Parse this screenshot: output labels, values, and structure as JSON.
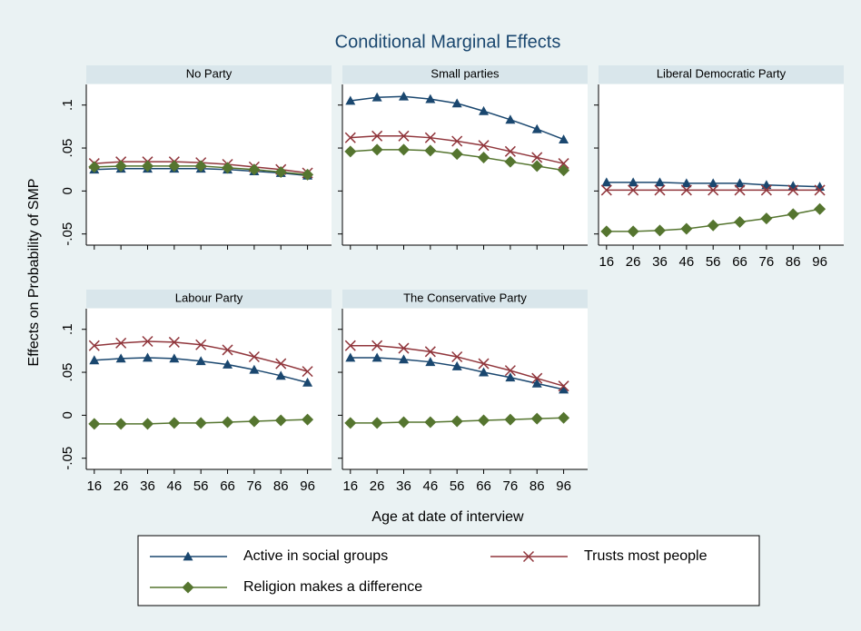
{
  "title": "Conditional Marginal Effects",
  "y_label": "Effects on Probability of SMP",
  "x_label": "Age at date of interview",
  "chart_data": [
    {
      "type": "line",
      "title": "No Party",
      "x": [
        16,
        26,
        36,
        46,
        56,
        66,
        76,
        86,
        96
      ],
      "xlim": [
        13,
        105
      ],
      "xticks": [
        16,
        26,
        36,
        46,
        56,
        66,
        76,
        86,
        96
      ],
      "ylim": [
        -0.063,
        0.124
      ],
      "yticks": [
        {
          "value": -0.05,
          "label": "-.05"
        },
        0,
        {
          "value": 0.05,
          "label": ".05"
        },
        {
          "value": 0.1,
          "label": ".1"
        }
      ],
      "series": [
        {
          "name": "Active in social groups",
          "color": "#1a476f",
          "marker": "triangle",
          "values": [
            0.025,
            0.026,
            0.026,
            0.026,
            0.026,
            0.025,
            0.023,
            0.021,
            0.018
          ]
        },
        {
          "name": "Trusts most people",
          "color": "#90353b",
          "marker": "x",
          "values": [
            0.032,
            0.034,
            0.034,
            0.034,
            0.033,
            0.031,
            0.028,
            0.025,
            0.021
          ]
        },
        {
          "name": "Religion makes a difference",
          "color": "#55752f",
          "marker": "diamond",
          "values": [
            0.028,
            0.029,
            0.029,
            0.029,
            0.029,
            0.027,
            0.025,
            0.022,
            0.019
          ]
        }
      ]
    },
    {
      "type": "line",
      "title": "Small parties",
      "x": [
        16,
        26,
        36,
        46,
        56,
        66,
        76,
        86,
        96
      ],
      "xlim": [
        13,
        105
      ],
      "xticks": [
        16,
        26,
        36,
        46,
        56,
        66,
        76,
        86,
        96
      ],
      "ylim": [
        -0.063,
        0.124
      ],
      "yticks": [
        {
          "value": -0.05,
          "label": "-.05"
        },
        0,
        {
          "value": 0.05,
          "label": ".05"
        },
        {
          "value": 0.1,
          "label": ".1"
        }
      ],
      "series": [
        {
          "name": "Active in social groups",
          "color": "#1a476f",
          "marker": "triangle",
          "values": [
            0.105,
            0.109,
            0.11,
            0.107,
            0.102,
            0.093,
            0.083,
            0.072,
            0.06
          ]
        },
        {
          "name": "Trusts most people",
          "color": "#90353b",
          "marker": "x",
          "values": [
            0.062,
            0.064,
            0.064,
            0.062,
            0.058,
            0.053,
            0.046,
            0.039,
            0.032
          ]
        },
        {
          "name": "Religion makes a difference",
          "color": "#55752f",
          "marker": "diamond",
          "values": [
            0.046,
            0.048,
            0.048,
            0.047,
            0.043,
            0.039,
            0.034,
            0.029,
            0.024
          ]
        }
      ]
    },
    {
      "type": "line",
      "title": "Liberal Democratic Party",
      "x": [
        16,
        26,
        36,
        46,
        56,
        66,
        76,
        86,
        96
      ],
      "xlim": [
        13,
        105
      ],
      "xticks": [
        16,
        26,
        36,
        46,
        56,
        66,
        76,
        86,
        96
      ],
      "ylim": [
        -0.063,
        0.124
      ],
      "yticks": [
        {
          "value": -0.05,
          "label": "-.05"
        },
        0,
        {
          "value": 0.05,
          "label": ".05"
        },
        {
          "value": 0.1,
          "label": ".1"
        }
      ],
      "series": [
        {
          "name": "Active in social groups",
          "color": "#1a476f",
          "marker": "triangle",
          "values": [
            0.01,
            0.01,
            0.01,
            0.009,
            0.009,
            0.009,
            0.007,
            0.006,
            0.005
          ]
        },
        {
          "name": "Trusts most people",
          "color": "#90353b",
          "marker": "x",
          "values": [
            0.001,
            0.001,
            0.001,
            0.001,
            0.001,
            0.001,
            0.001,
            0.001,
            0.001
          ]
        },
        {
          "name": "Religion makes a difference",
          "color": "#55752f",
          "marker": "diamond",
          "values": [
            -0.047,
            -0.047,
            -0.046,
            -0.044,
            -0.04,
            -0.036,
            -0.032,
            -0.027,
            -0.021
          ]
        }
      ]
    },
    {
      "type": "line",
      "title": "Labour Party",
      "x": [
        16,
        26,
        36,
        46,
        56,
        66,
        76,
        86,
        96
      ],
      "xlim": [
        13,
        105
      ],
      "xticks": [
        16,
        26,
        36,
        46,
        56,
        66,
        76,
        86,
        96
      ],
      "ylim": [
        -0.063,
        0.124
      ],
      "yticks": [
        {
          "value": -0.05,
          "label": "-.05"
        },
        0,
        {
          "value": 0.05,
          "label": ".05"
        },
        {
          "value": 0.1,
          "label": ".1"
        }
      ],
      "series": [
        {
          "name": "Active in social groups",
          "color": "#1a476f",
          "marker": "triangle",
          "values": [
            0.064,
            0.066,
            0.067,
            0.066,
            0.063,
            0.059,
            0.053,
            0.046,
            0.038
          ]
        },
        {
          "name": "Trusts most people",
          "color": "#90353b",
          "marker": "x",
          "values": [
            0.081,
            0.084,
            0.086,
            0.085,
            0.082,
            0.076,
            0.068,
            0.06,
            0.051
          ]
        },
        {
          "name": "Religion makes a difference",
          "color": "#55752f",
          "marker": "diamond",
          "values": [
            -0.01,
            -0.01,
            -0.01,
            -0.009,
            -0.009,
            -0.008,
            -0.007,
            -0.006,
            -0.005
          ]
        }
      ]
    },
    {
      "type": "line",
      "title": "The Conservative Party",
      "x": [
        16,
        26,
        36,
        46,
        56,
        66,
        76,
        86,
        96
      ],
      "xlim": [
        13,
        105
      ],
      "xticks": [
        16,
        26,
        36,
        46,
        56,
        66,
        76,
        86,
        96
      ],
      "ylim": [
        -0.063,
        0.124
      ],
      "yticks": [
        {
          "value": -0.05,
          "label": "-.05"
        },
        0,
        {
          "value": 0.05,
          "label": ".05"
        },
        {
          "value": 0.1,
          "label": ".1"
        }
      ],
      "series": [
        {
          "name": "Active in social groups",
          "color": "#1a476f",
          "marker": "triangle",
          "values": [
            0.067,
            0.067,
            0.065,
            0.062,
            0.057,
            0.05,
            0.044,
            0.037,
            0.03
          ]
        },
        {
          "name": "Trusts most people",
          "color": "#90353b",
          "marker": "x",
          "values": [
            0.081,
            0.081,
            0.078,
            0.074,
            0.068,
            0.06,
            0.052,
            0.043,
            0.034
          ]
        },
        {
          "name": "Religion makes a difference",
          "color": "#55752f",
          "marker": "diamond",
          "values": [
            -0.009,
            -0.009,
            -0.008,
            -0.008,
            -0.007,
            -0.006,
            -0.005,
            -0.004,
            -0.003
          ]
        }
      ]
    }
  ]
}
